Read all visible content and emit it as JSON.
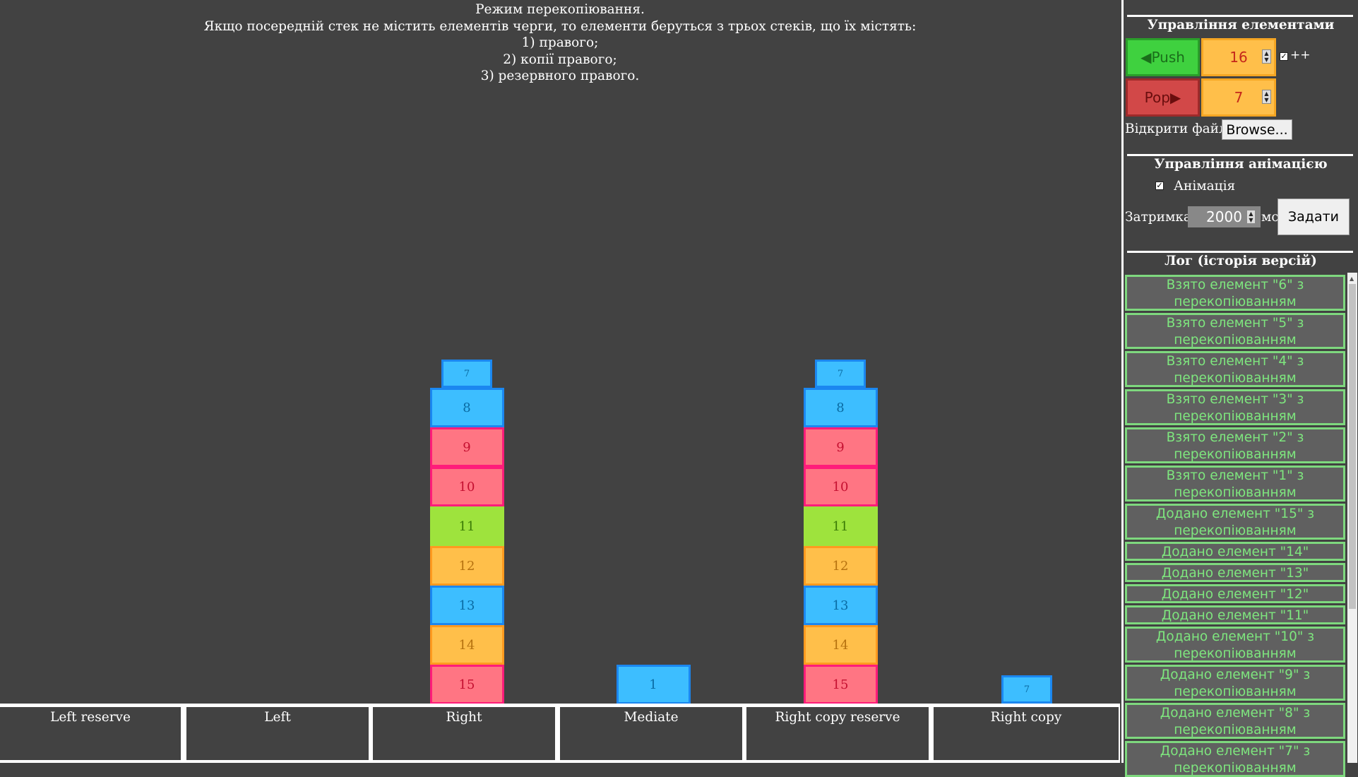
{
  "description": [
    "Режим перекопіювання.",
    "Якщо посередній стек не містить елементів черги, то елементи беруться з трьох стеків, що їх містять:",
    "1) правого;",
    "2) копії правого;",
    "3) резервного правого."
  ],
  "stack_labels": [
    "Left reserve",
    "Left",
    "Right",
    "Mediate",
    "Right copy reserve",
    "Right copy"
  ],
  "stacks": {
    "right": [
      "7",
      "8",
      "9",
      "10",
      "11",
      "12",
      "13",
      "14",
      "15"
    ],
    "mediate": [
      "1"
    ],
    "right_copy_reserve": [
      "7",
      "8",
      "9",
      "10",
      "11",
      "12",
      "13",
      "14",
      "15"
    ],
    "right_copy": [
      "7"
    ]
  },
  "item_colors": {
    "blue": {
      "fill": "#3dbeff",
      "border": "#1b87f0",
      "text": "#0a6ba3"
    },
    "pink": {
      "fill": "#ff7583",
      "border": "#ff1c7a",
      "text": "#c41030"
    },
    "green": {
      "fill": "#9ee33d",
      "border": "#9ee33d",
      "text": "#3a7a06"
    },
    "orange": {
      "fill": "#ffbf4a",
      "border": "#ff9a1f",
      "text": "#b5710f"
    }
  },
  "panel": {
    "elements_title": "Управління елементами",
    "push_label": "◀Push",
    "push_value": "16",
    "increment_label": "++",
    "increment_checked": true,
    "pop_label": "Pop▶",
    "pop_value": "7",
    "open_file_label": "Відкрити файл:",
    "browse_label": "Browse...",
    "animation_title": "Управління анімацією",
    "animation_label": "Анімація",
    "animation_checked": true,
    "delay_label": "Затримка:",
    "delay_value": "2000",
    "delay_unit": "мс",
    "set_label": "Задати",
    "log_title": "Лог (історія версій)",
    "log": [
      "Взято елемент \"6\" з перекопіюванням",
      "Взято елемент \"5\" з перекопіюванням",
      "Взято елемент \"4\" з перекопіюванням",
      "Взято елемент \"3\" з перекопіюванням",
      "Взято елемент \"2\" з перекопіюванням",
      "Взято елемент \"1\" з перекопіюванням",
      "Додано елемент \"15\" з перекопіюванням",
      "Додано елемент \"14\"",
      "Додано елемент \"13\"",
      "Додано елемент \"12\"",
      "Додано елемент \"11\"",
      "Додано елемент \"10\" з перекопіюванням",
      "Додано елемент \"9\" з перекопіюванням",
      "Додано елемент \"8\" з перекопіюванням",
      "Додано елемент \"7\" з перекопіюванням"
    ],
    "colors": {
      "push": "#3fd13f",
      "pop": "#d24848",
      "log_text": "#7ee67e"
    }
  }
}
